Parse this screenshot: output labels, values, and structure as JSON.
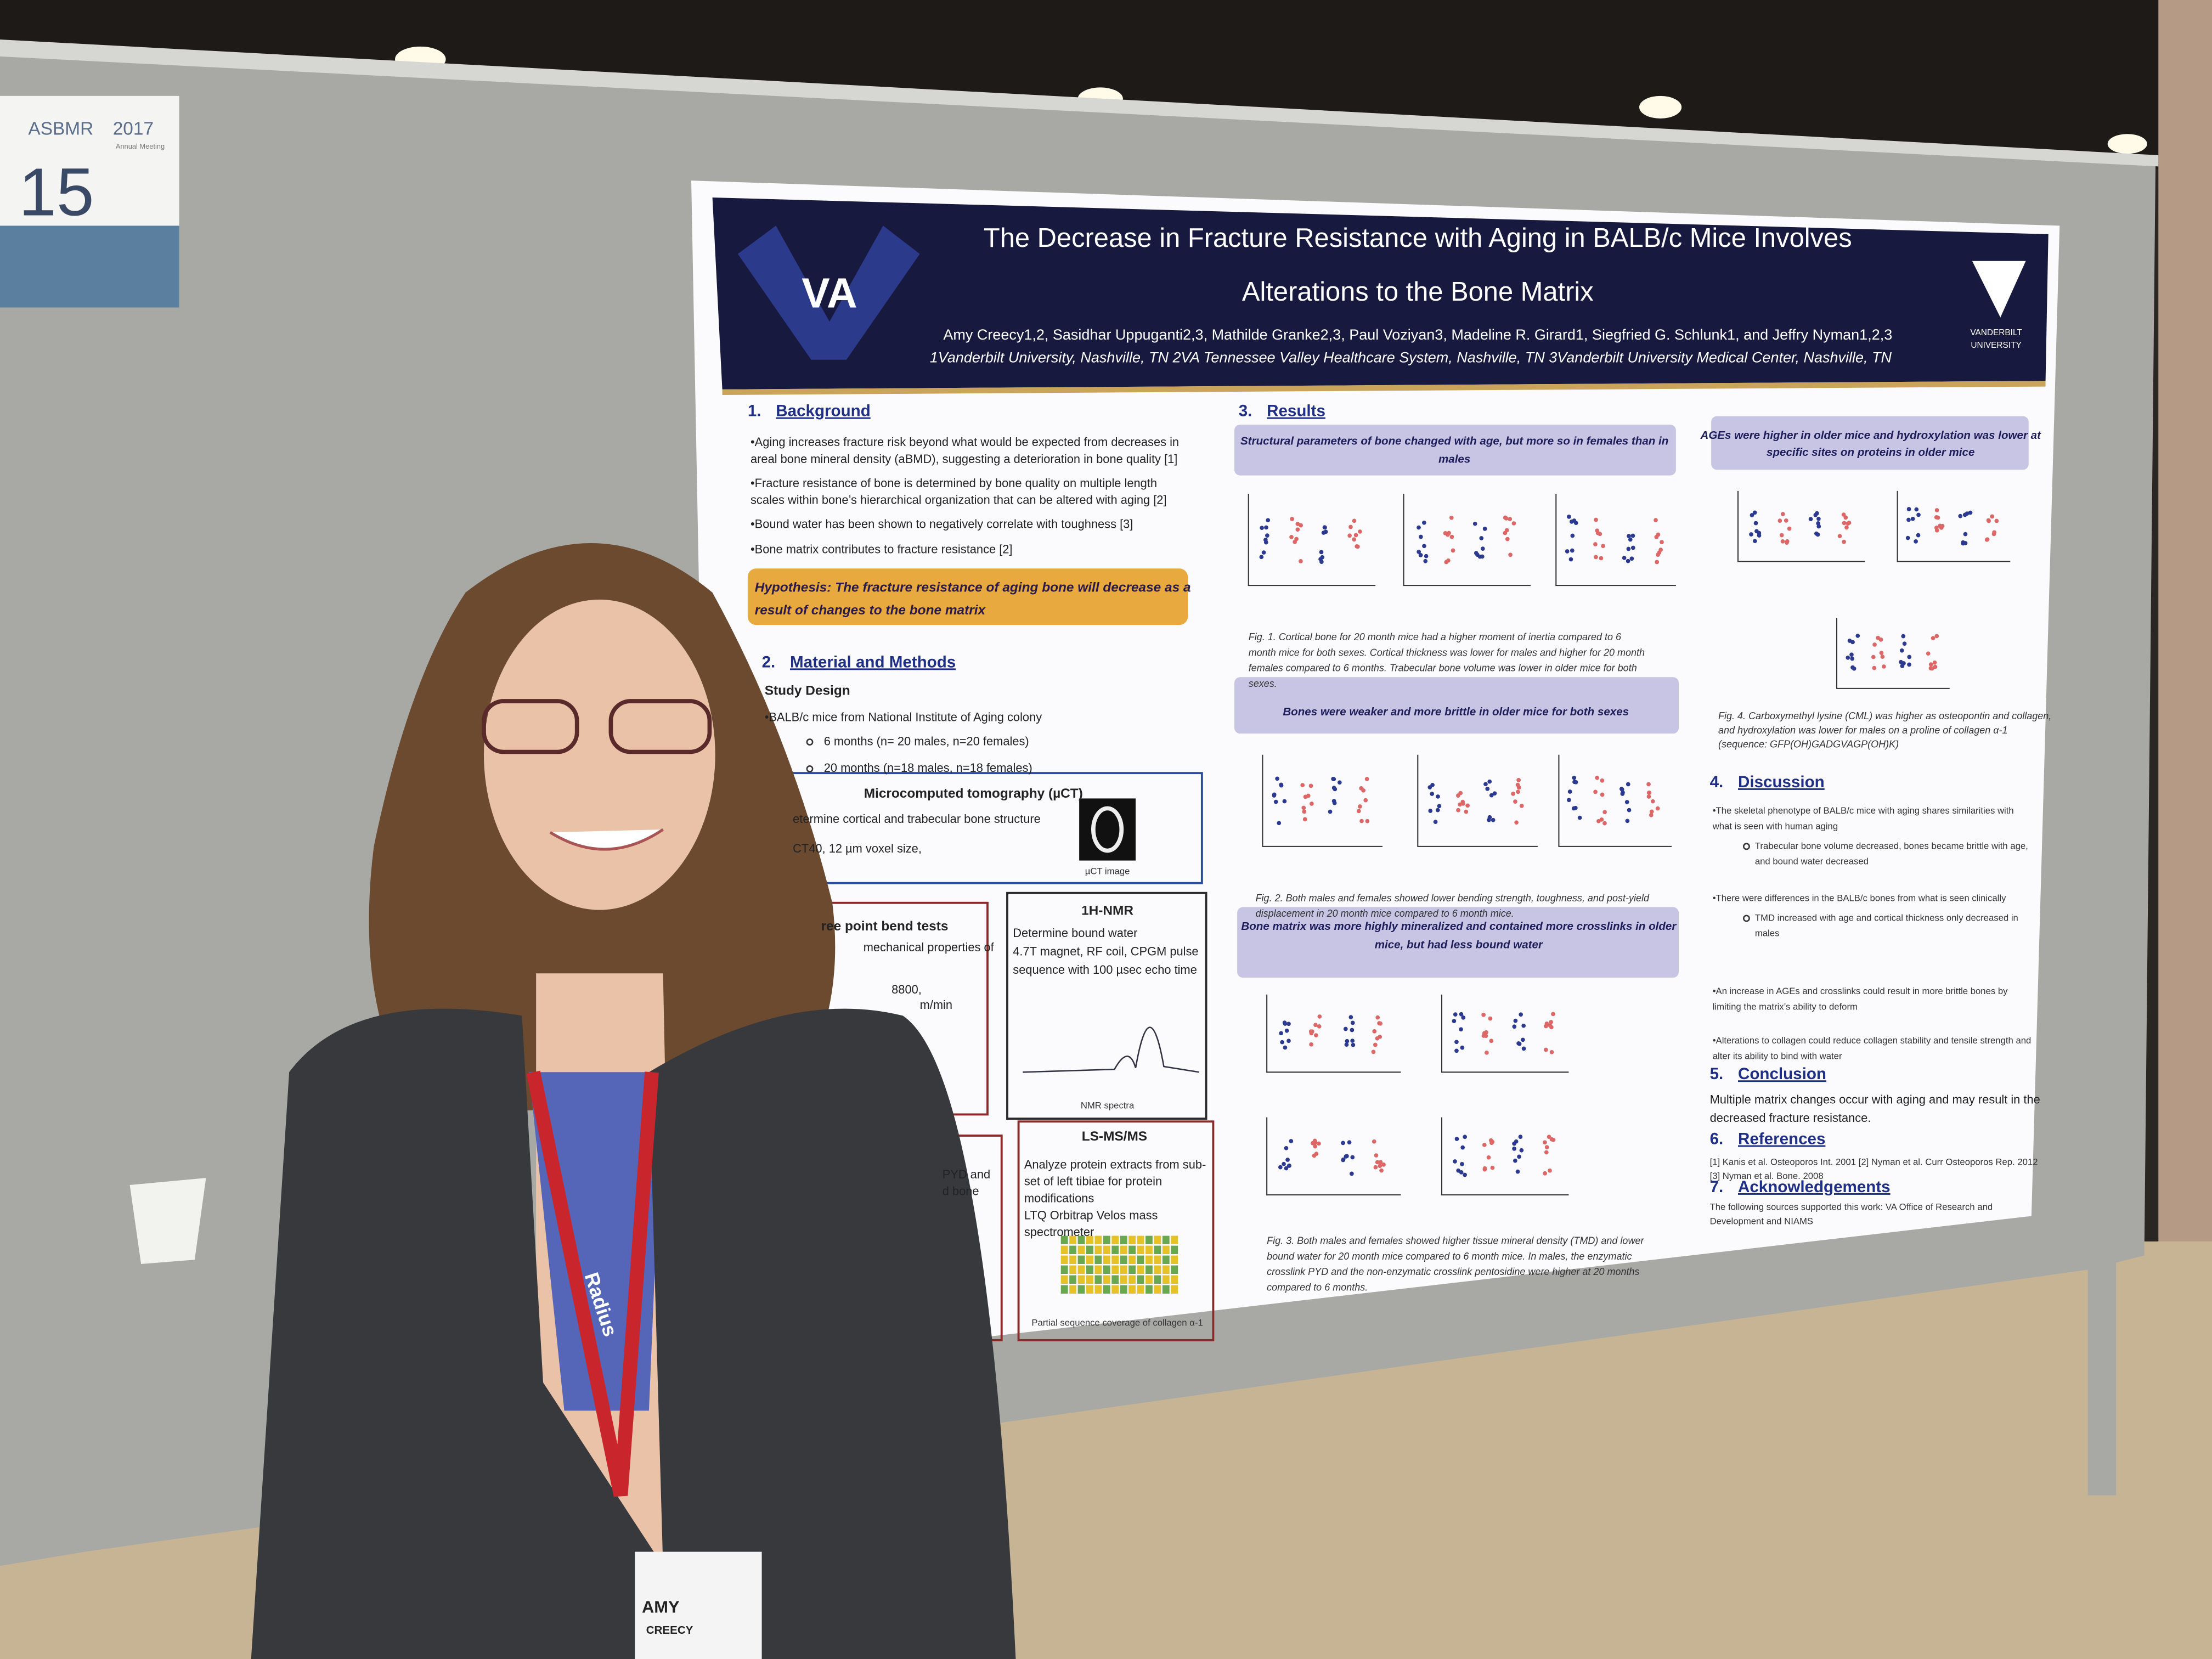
{
  "sign": {
    "logo": "ASBMR",
    "year": "2017",
    "subtitle": "Annual Meeting",
    "number": "15"
  },
  "poster": {
    "logo_left": "VA",
    "logo_right": [
      "VANDERBILT",
      "UNIVERSITY"
    ],
    "title": [
      "The Decrease in Fracture Resistance with Aging in BALB/c Mice Involves",
      "Alterations to the Bone Matrix"
    ],
    "authors": "Amy Creecy1,2, Sasidhar Uppuganti2,3, Mathilde Granke2,3, Paul Voziyan3, Madeline R. Girard1, Siegfried G. Schlunk1, and Jeffry Nyman1,2,3",
    "affiliations": "1Vanderbilt University, Nashville, TN 2VA Tennessee Valley Healthcare System, Nashville, TN 3Vanderbilt University Medical Center, Nashville, TN",
    "background": {
      "number": "1.",
      "heading": "Background",
      "items": [
        [
          "•Aging increases fracture risk beyond what would be expected from decreases in",
          "areal bone mineral density (aBMD), suggesting a deterioration in bone quality [1]"
        ],
        [
          "•Fracture resistance of bone is determined by bone quality on multiple length",
          "scales within bone’s hierarchical organization that can be altered with aging [2]"
        ],
        [
          "•Bound water has been shown to negatively correlate with toughness [3]"
        ],
        [
          "•Bone matrix contributes to fracture resistance [2]"
        ]
      ]
    },
    "hypothesis": [
      "Hypothesis: The fracture resistance of aging bone will decrease as a",
      "result of changes to the bone matrix"
    ],
    "methods": {
      "number": "2.",
      "heading": "Material and Methods",
      "subheading": "Study Design",
      "items": [
        "•BALB/c mice from National Institute of Aging colony",
        "6 months (n= 20 males, n=20 females)",
        "20 months (n=18 males, n=18 females)"
      ],
      "uct": {
        "title": "Microcomputed tomography (µCT)",
        "lines": [
          "etermine cortical and trabecular bone structure",
          "CT40, 12 µm voxel size,"
        ],
        "caption": "µCT  image"
      },
      "bend": {
        "title": "ree point bend tests",
        "lines": [
          "mechanical properties of",
          "8800,",
          "m/min"
        ]
      },
      "hplc": {
        "lines": [
          "PYD and",
          "d bone"
        ]
      },
      "nmr": {
        "title": "1H-NMR",
        "lines": [
          "Determine bound water",
          "4.7T magnet, RF coil, CPGM pulse",
          "sequence with 100 µsec echo time"
        ],
        "caption": "NMR spectra"
      },
      "ms": {
        "title": "LS-MS/MS",
        "lines": [
          "Analyze protein extracts from sub-",
          "set of left tibiae for protein",
          "modifications",
          "LTQ Orbitrap Velos mass",
          "spectrometer"
        ],
        "caption": "Partial sequence coverage of collagen α-1"
      }
    },
    "results": {
      "number": "3.",
      "heading": "Results",
      "panel1": [
        "Structural parameters of bone changed with age, but more so in females than in",
        "males"
      ],
      "fig1": [
        "Fig. 1. Cortical bone for 20 month mice had a higher moment of inertia compared to 6",
        "month mice for both sexes. Cortical thickness was lower for males and higher for 20 month",
        "females compared to 6 months. Trabecular bone volume was lower in older mice for both",
        "sexes."
      ],
      "panel2": [
        "Bones were weaker and more brittle in older mice for both sexes"
      ],
      "fig2": [
        "Fig. 2. Both males and females showed lower bending strength, toughness, and post-yield",
        "displacement in 20 month mice compared to 6 month mice."
      ],
      "panel3": [
        "Bone matrix was more highly mineralized and  contained more crosslinks in older",
        "mice, but had less bound water"
      ],
      "fig3": [
        "Fig. 3. Both males and females showed higher tissue mineral density (TMD) and lower",
        "bound water for 20 month mice compared to 6 month mice. In males, the enzymatic",
        "crosslink PYD and the non-enzymatic crosslink pentosidine were higher at 20 months",
        "compared to 6 months."
      ],
      "panel4": [
        "AGEs were higher in older mice and hydroxylation was lower at",
        "specific sites on proteins in older mice"
      ],
      "fig4": [
        "Fig. 4. Carboxymethyl lysine (CML) was higher as osteopontin and collagen,",
        "and hydroxylation was lower for males on a proline of collagen α-1",
        "(sequence: GFP(OH)GADGVAGP(OH)K)"
      ]
    },
    "discussion": {
      "number": "4.",
      "heading": "Discussion",
      "points": [
        {
          "text": [
            "•The skeletal phenotype of BALB/c mice with aging shares similarities with",
            "what is seen with human aging"
          ],
          "sub": [
            "Trabecular bone volume decreased, bones became brittle with age,",
            "and bound water decreased"
          ]
        },
        {
          "text": [
            "•There were differences in the BALB/c bones from what is seen clinically"
          ],
          "sub": [
            "TMD increased with age and cortical thickness only decreased in",
            "males"
          ]
        },
        {
          "text": [
            "•An increase in AGEs and crosslinks could result in more brittle bones by",
            "limiting the matrix’s ability to deform"
          ]
        },
        {
          "text": [
            "•Alterations to collagen could reduce collagen stability and tensile strength and",
            "alter its ability to bind with water"
          ]
        }
      ]
    },
    "conclusion": {
      "number": "5.",
      "heading": "Conclusion",
      "text": [
        "Multiple matrix changes occur with aging and may result in the",
        "decreased fracture resistance."
      ]
    },
    "references": {
      "number": "6.",
      "heading": "References",
      "text": [
        "[1] Kanis et al. Osteoporos Int. 2001 [2] Nyman et al. Curr Osteoporos Rep. 2012",
        "[3] Nyman et al. Bone. 2008"
      ]
    },
    "acknowledgements": {
      "number": "7.",
      "heading": "Acknowledgements",
      "text": [
        "The following sources supported this work: VA Office of Research and",
        "Development and NIAMS"
      ]
    }
  },
  "badge": {
    "first": "AMY",
    "last": "CREECY",
    "lanyard": "Radius"
  }
}
